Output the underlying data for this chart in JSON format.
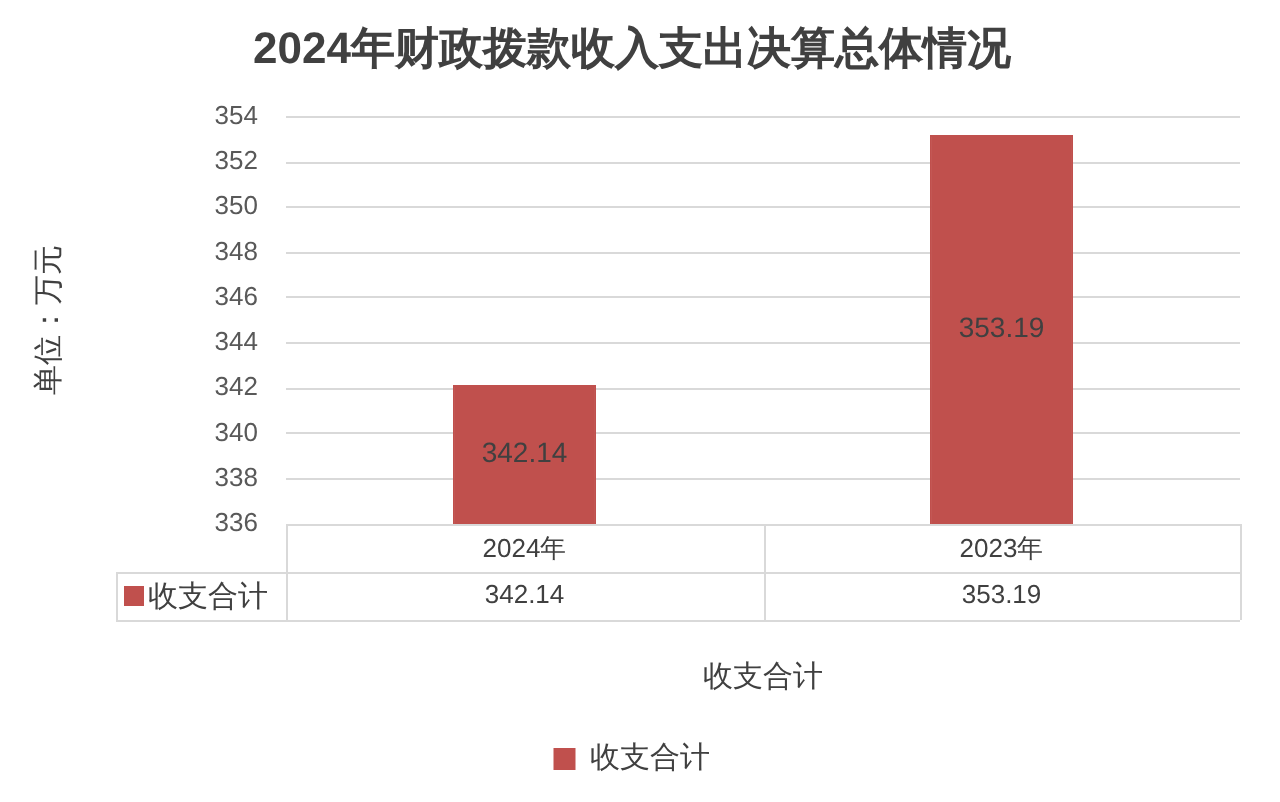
{
  "chart_data": {
    "type": "bar",
    "title": "2024年财政拨款收入支出决算总体情况",
    "ylabel": "单位：万元",
    "xlabel": "收支合计",
    "categories": [
      "2024年",
      "2023年"
    ],
    "series": [
      {
        "name": "收支合计",
        "color": "#c0504d",
        "values": [
          342.14,
          353.19
        ],
        "value_labels": [
          "342.14",
          "353.19"
        ]
      }
    ],
    "annotations": [
      "342.14",
      "353.19"
    ],
    "ylim": [
      336,
      354
    ],
    "yticks": [
      336,
      338,
      340,
      342,
      344,
      346,
      348,
      350,
      352,
      354
    ],
    "grid": "y",
    "legend": "bottom",
    "data_labels": true
  }
}
